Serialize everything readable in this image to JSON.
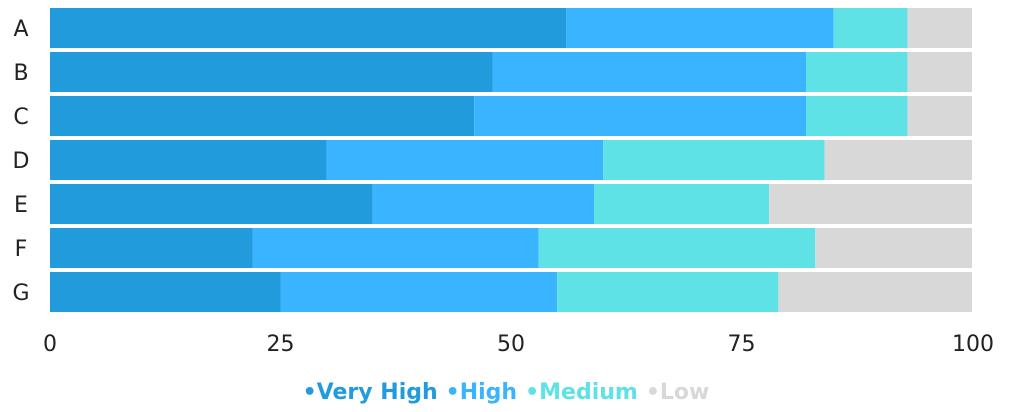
{
  "chart_data": {
    "type": "bar",
    "orientation": "horizontal",
    "stacked": true,
    "categories": [
      "A",
      "B",
      "C",
      "D",
      "E",
      "F",
      "G"
    ],
    "series": [
      {
        "name": "Very High",
        "color": "#229BDC",
        "values": [
          56,
          48,
          46,
          30,
          35,
          22,
          25
        ]
      },
      {
        "name": "High",
        "color": "#3BB4FF",
        "values": [
          29,
          34,
          36,
          30,
          24,
          31,
          30
        ]
      },
      {
        "name": "Medium",
        "color": "#5FE2E6",
        "values": [
          8,
          11,
          11,
          24,
          19,
          30,
          24
        ]
      },
      {
        "name": "Low",
        "color": "#D8D8D8",
        "values": [
          7,
          7,
          7,
          16,
          22,
          17,
          21
        ]
      }
    ],
    "xlim": [
      0,
      100
    ],
    "xticks": [
      0,
      25,
      50,
      75,
      100
    ],
    "grid": false,
    "legend_position": "bottom-center",
    "legend_marker": "•"
  }
}
